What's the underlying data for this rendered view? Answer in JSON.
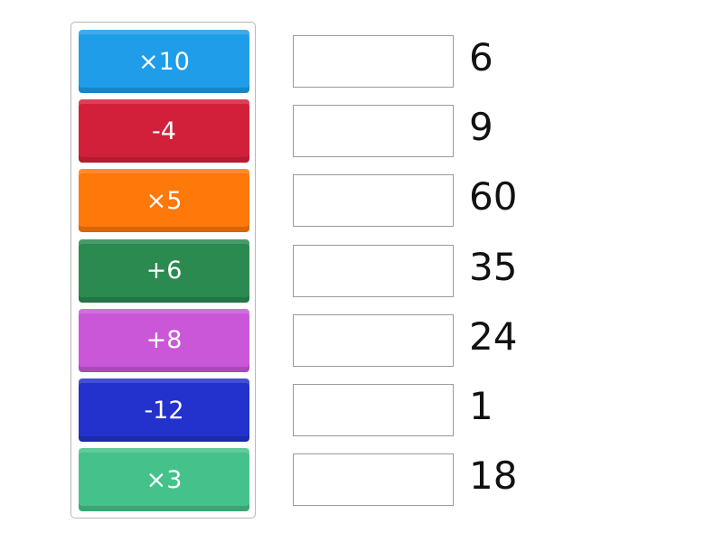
{
  "tiles": [
    {
      "label": "×10",
      "color": "#1f9de9"
    },
    {
      "label": "-4",
      "color": "#d3203a"
    },
    {
      "label": "×5",
      "color": "#ff780a"
    },
    {
      "label": "+6",
      "color": "#2a8a50"
    },
    {
      "label": "+8",
      "color": "#c957d8"
    },
    {
      "label": "-12",
      "color": "#2332cc"
    },
    {
      "label": "×3",
      "color": "#45c28b"
    }
  ],
  "targets": [
    "6",
    "9",
    "60",
    "35",
    "24",
    "1",
    "18"
  ]
}
